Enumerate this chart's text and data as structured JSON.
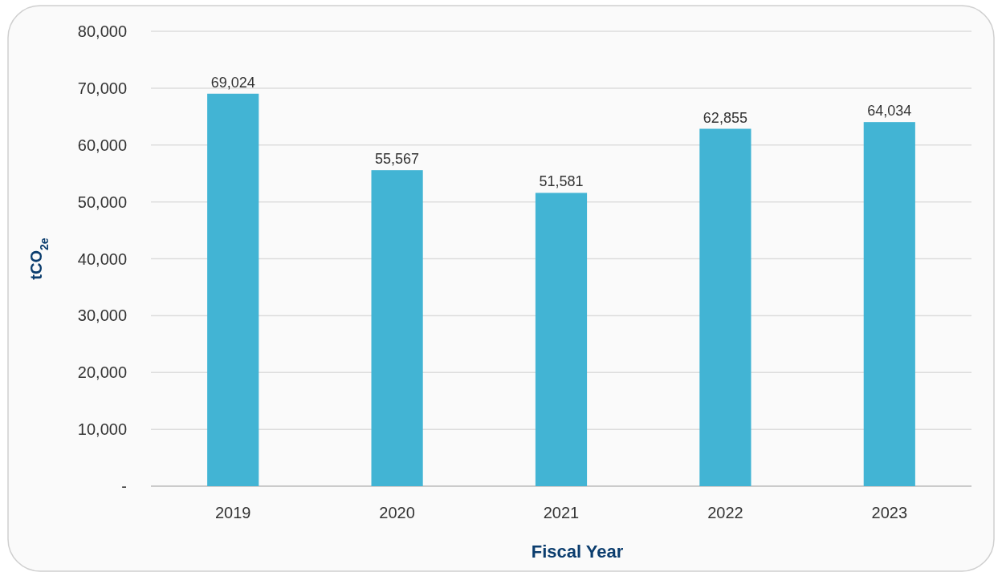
{
  "chart_data": {
    "type": "bar",
    "xlabel": "Fiscal Year",
    "ylabel": "tCO$_{2e}$",
    "categories": [
      "2019",
      "2020",
      "2021",
      "2022",
      "2023"
    ],
    "values": [
      69024,
      55567,
      51581,
      62855,
      64034
    ],
    "color": "#42b4d4",
    "ylim": [
      0,
      80000
    ],
    "yticks": [
      {
        "value": 0,
        "label": "-"
      },
      {
        "value": 10000,
        "label": "10,000"
      },
      {
        "value": 20000,
        "label": "20,000"
      },
      {
        "value": 30000,
        "label": "30,000"
      },
      {
        "value": 40000,
        "label": "40,000"
      },
      {
        "value": 50000,
        "label": "50,000"
      },
      {
        "value": 60000,
        "label": "60,000"
      },
      {
        "value": 70000,
        "label": "70,000"
      },
      {
        "value": 80000,
        "label": "80,000"
      }
    ],
    "value_labels": [
      "69,024",
      "55,567",
      "51,581",
      "62,855",
      "64,034"
    ],
    "grid": "y"
  }
}
